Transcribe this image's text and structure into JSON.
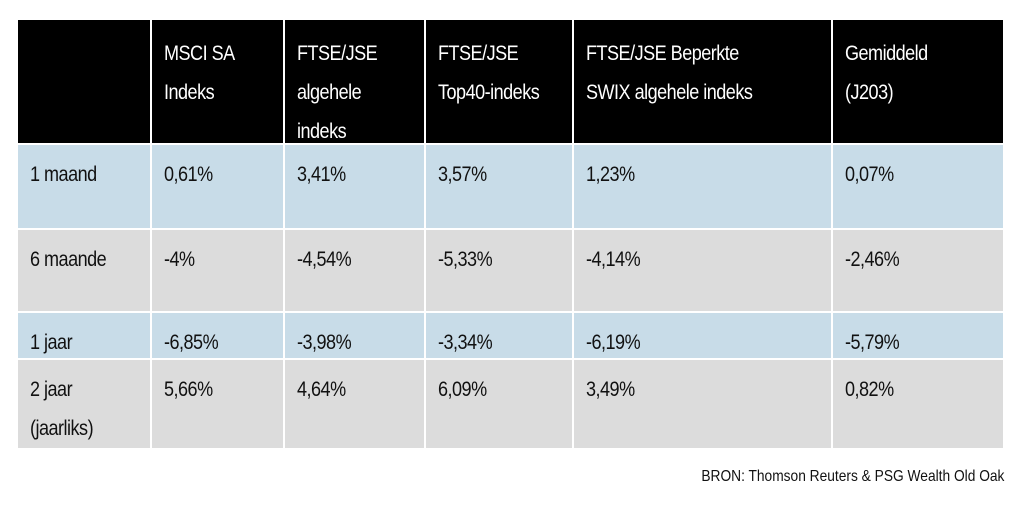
{
  "table": {
    "header": [
      "",
      "MSCI SA\nIndeks",
      "FTSE/JSE\nalgehele\nindeks",
      "FTSE/JSE\nTop40-indeks",
      "FTSE/JSE Beperkte\nSWIX algehele indeks",
      "Gemiddeld\n (J203)"
    ],
    "rows": [
      [
        "1 maand",
        " 0,61%",
        "3,41%",
        "3,57%",
        "1,23%",
        " 0,07%"
      ],
      [
        "6 maande",
        "-4%",
        "-4,54%",
        "-5,33%",
        "-4,14%",
        "-2,46%"
      ],
      [
        "1 jaar",
        "-6,85%",
        "-3,98%",
        "-3,34%",
        "-6,19%",
        "-5,79%"
      ],
      [
        "2 jaar\n(jaarliks)",
        "5,66%",
        " 4,64%",
        " 6,09%",
        " 3,49%",
        " 0,82%"
      ]
    ]
  },
  "source": "BRON: Thomson Reuters & PSG Wealth Old Oak"
}
